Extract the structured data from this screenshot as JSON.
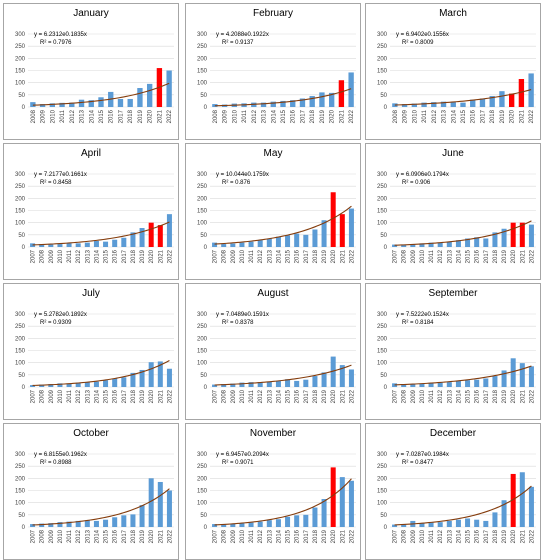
{
  "colors": {
    "bar": "#5b9bd5",
    "highlight": "#ff0000",
    "trend": "#843c0c",
    "grid": "#d9d9d9"
  },
  "chart_data": [
    {
      "type": "bar",
      "title": "January",
      "categories": [
        "2008",
        "2009",
        "2010",
        "2011",
        "2012",
        "2013",
        "2014",
        "2015",
        "2016",
        "2017",
        "2018",
        "2019",
        "2020",
        "2021",
        "2022"
      ],
      "values": [
        20,
        12,
        15,
        17,
        18,
        30,
        28,
        40,
        62,
        33,
        33,
        78,
        95,
        160,
        150
      ],
      "highlight": [
        false,
        false,
        false,
        false,
        false,
        false,
        false,
        false,
        false,
        false,
        false,
        false,
        false,
        true,
        false
      ],
      "trend": {
        "a": 6.2312,
        "b": 0.1835
      },
      "equation": "y = 6.2312e0.1835x",
      "r2": "R² = 0.7976",
      "ylim": [
        0,
        300
      ],
      "yticks": [
        0,
        50,
        100,
        150,
        200,
        250,
        300
      ]
    },
    {
      "type": "bar",
      "title": "February",
      "categories": [
        "2008",
        "2009",
        "2010",
        "2011",
        "2012",
        "2013",
        "2014",
        "2015",
        "2016",
        "2017",
        "2018",
        "2019",
        "2020",
        "2021",
        "2022"
      ],
      "values": [
        12,
        10,
        14,
        15,
        18,
        18,
        22,
        25,
        28,
        35,
        45,
        60,
        58,
        110,
        142
      ],
      "highlight": [
        false,
        false,
        false,
        false,
        false,
        false,
        false,
        false,
        false,
        false,
        false,
        false,
        false,
        true,
        false
      ],
      "trend": {
        "a": 4.2088,
        "b": 0.1922
      },
      "equation": "y = 4.2088e0.1922x",
      "r2": "R² = 0.9137",
      "ylim": [
        0,
        300
      ],
      "yticks": [
        0,
        50,
        100,
        150,
        200,
        250,
        300
      ]
    },
    {
      "type": "bar",
      "title": "March",
      "categories": [
        "2008",
        "2009",
        "2010",
        "2011",
        "2012",
        "2013",
        "2014",
        "2015",
        "2016",
        "2017",
        "2018",
        "2019",
        "2020",
        "2021",
        "2022"
      ],
      "values": [
        15,
        12,
        14,
        18,
        20,
        22,
        20,
        18,
        30,
        35,
        45,
        65,
        55,
        115,
        138
      ],
      "highlight": [
        false,
        false,
        false,
        false,
        false,
        false,
        false,
        false,
        false,
        false,
        false,
        false,
        true,
        true,
        false
      ],
      "trend": {
        "a": 6.9402,
        "b": 0.1556
      },
      "equation": "y = 6.9402e0.1556x",
      "r2": "R² = 0.8009",
      "ylim": [
        0,
        300
      ],
      "yticks": [
        0,
        50,
        100,
        150,
        200,
        250,
        300
      ]
    },
    {
      "type": "bar",
      "title": "April",
      "categories": [
        "2007",
        "2008",
        "2009",
        "2010",
        "2011",
        "2012",
        "2013",
        "2014",
        "2015",
        "2016",
        "2017",
        "2018",
        "2019",
        "2020",
        "2021",
        "2022"
      ],
      "values": [
        15,
        12,
        10,
        12,
        15,
        15,
        18,
        25,
        22,
        30,
        38,
        60,
        78,
        100,
        90,
        135
      ],
      "highlight": [
        false,
        false,
        false,
        false,
        false,
        false,
        false,
        false,
        false,
        false,
        false,
        false,
        false,
        true,
        true,
        false
      ],
      "trend": {
        "a": 7.2177,
        "b": 0.1661
      },
      "equation": "y = 7.2177e0.1661x",
      "r2": "R² = 0.8458",
      "ylim": [
        0,
        300
      ],
      "yticks": [
        0,
        50,
        100,
        150,
        200,
        250,
        300
      ]
    },
    {
      "type": "bar",
      "title": "May",
      "categories": [
        "2007",
        "2008",
        "2009",
        "2010",
        "2011",
        "2012",
        "2013",
        "2014",
        "2015",
        "2016",
        "2017",
        "2018",
        "2019",
        "2020",
        "2021",
        "2022"
      ],
      "values": [
        18,
        12,
        14,
        18,
        22,
        28,
        35,
        42,
        48,
        55,
        50,
        72,
        110,
        225,
        135,
        158
      ],
      "highlight": [
        false,
        false,
        false,
        false,
        false,
        false,
        false,
        false,
        false,
        false,
        false,
        false,
        false,
        true,
        true,
        false
      ],
      "trend": {
        "a": 10.044,
        "b": 0.1759
      },
      "equation": "y = 10.044e0.1759x",
      "r2": "R² = 0.876",
      "ylim": [
        0,
        300
      ],
      "yticks": [
        0,
        50,
        100,
        150,
        200,
        250,
        300
      ]
    },
    {
      "type": "bar",
      "title": "June",
      "categories": [
        "2007",
        "2008",
        "2009",
        "2010",
        "2011",
        "2012",
        "2013",
        "2014",
        "2015",
        "2016",
        "2017",
        "2018",
        "2019",
        "2020",
        "2021",
        "2022"
      ],
      "values": [
        10,
        8,
        12,
        15,
        18,
        18,
        22,
        28,
        35,
        40,
        35,
        60,
        75,
        100,
        100,
        92
      ],
      "highlight": [
        false,
        false,
        false,
        false,
        false,
        false,
        false,
        false,
        false,
        false,
        false,
        false,
        false,
        true,
        true,
        false
      ],
      "trend": {
        "a": 6.0906,
        "b": 0.1794
      },
      "equation": "y = 6.0906e0.1794x",
      "r2": "R² = 0.906",
      "ylim": [
        0,
        300
      ],
      "yticks": [
        0,
        50,
        100,
        150,
        200,
        250,
        300
      ]
    },
    {
      "type": "bar",
      "title": "July",
      "categories": [
        "2007",
        "2008",
        "2009",
        "2010",
        "2011",
        "2012",
        "2013",
        "2014",
        "2015",
        "2016",
        "2017",
        "2018",
        "2019",
        "2020",
        "2021",
        "2022"
      ],
      "values": [
        8,
        10,
        12,
        15,
        14,
        18,
        20,
        22,
        28,
        35,
        40,
        58,
        70,
        102,
        105,
        75
      ],
      "highlight": [
        false,
        false,
        false,
        false,
        false,
        false,
        false,
        false,
        false,
        false,
        false,
        false,
        false,
        false,
        false,
        false
      ],
      "trend": {
        "a": 5.2782,
        "b": 0.1892
      },
      "equation": "y = 5.2782e0.1892x",
      "r2": "R² = 0.9309",
      "ylim": [
        0,
        300
      ],
      "yticks": [
        0,
        50,
        100,
        150,
        200,
        250,
        300
      ]
    },
    {
      "type": "bar",
      "title": "August",
      "categories": [
        "2007",
        "2008",
        "2009",
        "2010",
        "2011",
        "2012",
        "2013",
        "2014",
        "2015",
        "2016",
        "2017",
        "2018",
        "2019",
        "2020",
        "2021",
        "2022"
      ],
      "values": [
        10,
        12,
        14,
        18,
        20,
        20,
        22,
        25,
        32,
        25,
        30,
        45,
        60,
        125,
        90,
        72
      ],
      "highlight": [
        false,
        false,
        false,
        false,
        false,
        false,
        false,
        false,
        false,
        false,
        false,
        false,
        false,
        false,
        false,
        false
      ],
      "trend": {
        "a": 7.0489,
        "b": 0.1591
      },
      "equation": "y = 7.0489e0.1591x",
      "r2": "R² = 0.8378",
      "ylim": [
        0,
        300
      ],
      "yticks": [
        0,
        50,
        100,
        150,
        200,
        250,
        300
      ]
    },
    {
      "type": "bar",
      "title": "September",
      "categories": [
        "2007",
        "2008",
        "2009",
        "2010",
        "2011",
        "2012",
        "2013",
        "2014",
        "2015",
        "2016",
        "2017",
        "2018",
        "2019",
        "2020",
        "2021",
        "2022"
      ],
      "values": [
        15,
        10,
        12,
        14,
        16,
        18,
        20,
        25,
        28,
        30,
        35,
        45,
        68,
        118,
        98,
        85
      ],
      "highlight": [
        false,
        false,
        false,
        false,
        false,
        false,
        false,
        false,
        false,
        false,
        false,
        false,
        false,
        false,
        false,
        false
      ],
      "trend": {
        "a": 7.5222,
        "b": 0.1524
      },
      "equation": "y = 7.5222e0.1524x",
      "r2": "R² = 0.8184",
      "ylim": [
        0,
        300
      ],
      "yticks": [
        0,
        50,
        100,
        150,
        200,
        250,
        300
      ]
    },
    {
      "type": "bar",
      "title": "October",
      "categories": [
        "2007",
        "2008",
        "2009",
        "2010",
        "2011",
        "2012",
        "2013",
        "2014",
        "2015",
        "2016",
        "2017",
        "2018",
        "2019",
        "2020",
        "2021",
        "2022"
      ],
      "values": [
        12,
        14,
        16,
        20,
        22,
        25,
        28,
        25,
        30,
        40,
        48,
        52,
        90,
        200,
        185,
        150
      ],
      "highlight": [
        false,
        false,
        false,
        false,
        false,
        false,
        false,
        false,
        false,
        false,
        false,
        false,
        false,
        false,
        false,
        false
      ],
      "trend": {
        "a": 6.8155,
        "b": 0.1962
      },
      "equation": "y = 6.8155e0.1962x",
      "r2": "R² = 0.8988",
      "ylim": [
        0,
        300
      ],
      "yticks": [
        0,
        50,
        100,
        150,
        200,
        250,
        300
      ]
    },
    {
      "type": "bar",
      "title": "November",
      "categories": [
        "2007",
        "2008",
        "2009",
        "2010",
        "2011",
        "2012",
        "2013",
        "2014",
        "2015",
        "2016",
        "2017",
        "2018",
        "2019",
        "2020",
        "2021",
        "2022"
      ],
      "values": [
        12,
        10,
        14,
        16,
        18,
        22,
        28,
        32,
        42,
        48,
        50,
        80,
        115,
        245,
        205,
        190
      ],
      "highlight": [
        false,
        false,
        false,
        false,
        false,
        false,
        false,
        false,
        false,
        false,
        false,
        false,
        false,
        true,
        false,
        false
      ],
      "trend": {
        "a": 6.9457,
        "b": 0.2094
      },
      "equation": "y = 6.9457e0.2094x",
      "r2": "R² = 0.9071",
      "ylim": [
        0,
        300
      ],
      "yticks": [
        0,
        50,
        100,
        150,
        200,
        250,
        300
      ]
    },
    {
      "type": "bar",
      "title": "December",
      "categories": [
        "2007",
        "2008",
        "2009",
        "2010",
        "2011",
        "2012",
        "2013",
        "2014",
        "2015",
        "2016",
        "2017",
        "2018",
        "2019",
        "2020",
        "2021",
        "2022"
      ],
      "values": [
        10,
        12,
        25,
        15,
        18,
        20,
        25,
        30,
        35,
        30,
        25,
        60,
        110,
        218,
        225,
        165
      ],
      "highlight": [
        false,
        false,
        false,
        false,
        false,
        false,
        false,
        false,
        false,
        false,
        false,
        false,
        false,
        true,
        false,
        false
      ],
      "trend": {
        "a": 7.0287,
        "b": 0.1984
      },
      "equation": "y = 7.0287e0.1984x",
      "r2": "R² = 0.8477",
      "ylim": [
        0,
        300
      ],
      "yticks": [
        0,
        50,
        100,
        150,
        200,
        250,
        300
      ]
    }
  ]
}
